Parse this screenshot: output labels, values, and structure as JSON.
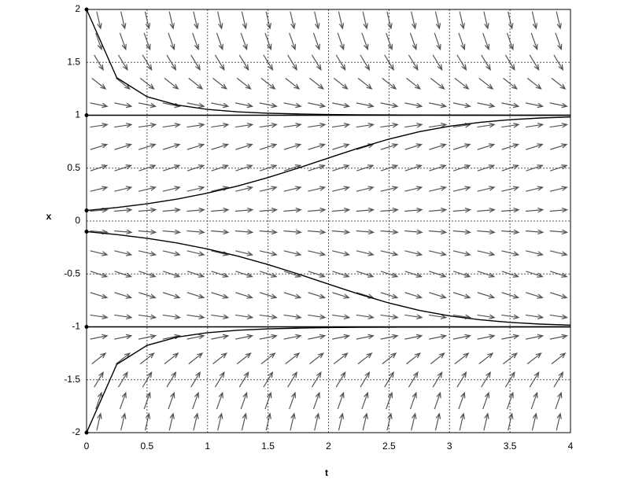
{
  "chart_data": {
    "type": "direction-field",
    "x_label": "t",
    "y_label": "x",
    "xlim": [
      0,
      4
    ],
    "ylim": [
      -2,
      2
    ],
    "xticks": [
      0,
      0.5,
      1,
      1.5,
      2,
      2.5,
      3,
      3.5,
      4
    ],
    "yticks": [
      -2,
      -1.5,
      -1,
      -0.5,
      0,
      0.5,
      1,
      1.5,
      2
    ],
    "grid": true,
    "field": {
      "color": "#555555",
      "t": [
        0.1,
        0.3,
        0.5,
        0.7,
        0.9,
        1.1,
        1.3,
        1.5,
        1.7,
        1.9,
        2.1,
        2.3,
        2.5,
        2.7,
        2.9,
        3.1,
        3.3,
        3.5,
        3.7,
        3.9
      ],
      "x": [
        1.9,
        1.7,
        1.5,
        1.3,
        1.1,
        0.9,
        0.7,
        0.5,
        0.3,
        0.1,
        -0.1,
        -0.3,
        -0.5,
        -0.7,
        -0.9,
        -1.1,
        -1.3,
        -1.5,
        -1.7,
        -1.9
      ],
      "slopes": [
        -4.959,
        -3.213,
        -1.875,
        -0.897,
        -0.231,
        0.171,
        0.357,
        0.375,
        0.273,
        0.099,
        -0.099,
        -0.273,
        -0.375,
        -0.357,
        -0.171,
        0.231,
        0.897,
        1.875,
        3.213,
        4.959
      ]
    },
    "x": [
      0,
      0.25,
      0.5,
      0.75,
      1,
      1.25,
      1.5,
      1.75,
      2,
      2.25,
      2.5,
      2.75,
      3,
      3.25,
      3.5,
      3.75,
      4
    ],
    "series": [
      {
        "color": "#000000",
        "values": [
          2,
          1.354,
          1.175,
          1.096,
          1.055,
          1.032,
          1.019,
          1.012,
          1.007,
          1.004,
          1.003,
          1.002,
          1.001,
          1.001,
          1,
          1,
          1
        ]
      },
      {
        "color": "#000000",
        "values": [
          1,
          1,
          1,
          1,
          1,
          1,
          1,
          1,
          1,
          1,
          1,
          1,
          1,
          1,
          1,
          1,
          1
        ]
      },
      {
        "color": "#000000",
        "values": [
          0.1,
          0.128,
          0.163,
          0.208,
          0.264,
          0.331,
          0.411,
          0.501,
          0.596,
          0.69,
          0.775,
          0.844,
          0.896,
          0.933,
          0.958,
          0.974,
          0.984
        ]
      },
      {
        "color": "#000000",
        "values": [
          -0.1,
          -0.128,
          -0.163,
          -0.208,
          -0.264,
          -0.331,
          -0.411,
          -0.501,
          -0.596,
          -0.69,
          -0.775,
          -0.844,
          -0.896,
          -0.933,
          -0.958,
          -0.974,
          -0.984
        ]
      },
      {
        "color": "#000000",
        "values": [
          -1,
          -1,
          -1,
          -1,
          -1,
          -1,
          -1,
          -1,
          -1,
          -1,
          -1,
          -1,
          -1,
          -1,
          -1,
          -1,
          -1
        ]
      },
      {
        "color": "#000000",
        "values": [
          -2,
          -1.354,
          -1.175,
          -1.096,
          -1.055,
          -1.032,
          -1.019,
          -1.012,
          -1.007,
          -1.004,
          -1.003,
          -1.002,
          -1.001,
          -1.001,
          -1,
          -1,
          -1
        ]
      }
    ]
  }
}
